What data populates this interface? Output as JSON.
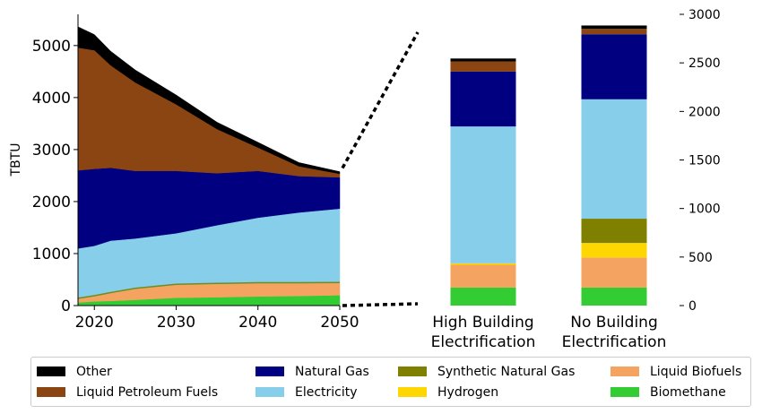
{
  "chart_data": [
    {
      "type": "area",
      "stacked": true,
      "ylabel": "TBTU",
      "ylim": [
        0,
        5600
      ],
      "yticks": [
        0,
        1000,
        2000,
        3000,
        4000,
        5000
      ],
      "xlim": [
        2018,
        2050
      ],
      "xticks": [
        2020,
        2030,
        2040,
        2050
      ],
      "x": [
        2018,
        2020,
        2022,
        2025,
        2030,
        2035,
        2040,
        2045,
        2050
      ],
      "series": [
        {
          "name": "Biomethane",
          "color": "#33cc33",
          "values": [
            60,
            80,
            90,
            110,
            150,
            160,
            175,
            185,
            200
          ]
        },
        {
          "name": "Liquid Biofuels",
          "color": "#f4a460",
          "values": [
            80,
            110,
            160,
            220,
            260,
            265,
            265,
            255,
            245
          ]
        },
        {
          "name": "Electricity",
          "color": "#87ceeb",
          "values": [
            960,
            960,
            1000,
            960,
            980,
            1120,
            1250,
            1350,
            1420
          ]
        },
        {
          "name": "Natural Gas",
          "color": "#000080",
          "values": [
            1500,
            1480,
            1400,
            1300,
            1200,
            1000,
            900,
            700,
            600
          ]
        },
        {
          "name": "Liquid Petroleum Fuels",
          "color": "#8b4513",
          "values": [
            2360,
            2280,
            1970,
            1700,
            1280,
            850,
            450,
            190,
            70
          ]
        },
        {
          "name": "Other",
          "color": "#000000",
          "values": [
            400,
            300,
            270,
            240,
            180,
            130,
            100,
            70,
            40
          ]
        }
      ]
    },
    {
      "type": "bar",
      "stacked": true,
      "ylim": [
        0,
        3000
      ],
      "yticks": [
        0,
        500,
        1000,
        1500,
        2000,
        2500,
        3000
      ],
      "categories": [
        "High Building Electrification",
        "No Building Electrification"
      ],
      "category_lines": [
        [
          "High Building",
          "Electrification"
        ],
        [
          "No Building",
          "Electrification"
        ]
      ],
      "series": [
        {
          "name": "Biomethane",
          "color": "#33cc33",
          "values": [
            185,
            185
          ]
        },
        {
          "name": "Liquid Biofuels",
          "color": "#f4a460",
          "values": [
            235,
            310
          ]
        },
        {
          "name": "Hydrogen",
          "color": "#ffd700",
          "values": [
            15,
            150
          ]
        },
        {
          "name": "Synthetic Natural Gas",
          "color": "#808000",
          "values": [
            0,
            250
          ]
        },
        {
          "name": "Electricity",
          "color": "#87ceeb",
          "values": [
            1410,
            1230
          ]
        },
        {
          "name": "Natural Gas",
          "color": "#000080",
          "values": [
            565,
            670
          ]
        },
        {
          "name": "Liquid Petroleum Fuels",
          "color": "#8b4513",
          "values": [
            105,
            55
          ]
        },
        {
          "name": "Other",
          "color": "#000000",
          "values": [
            30,
            35
          ]
        }
      ]
    }
  ],
  "legend": {
    "items": [
      {
        "label": "Other",
        "color": "#000000"
      },
      {
        "label": "Liquid Petroleum Fuels",
        "color": "#8b4513"
      },
      {
        "label": "Natural Gas",
        "color": "#000080"
      },
      {
        "label": "Electricity",
        "color": "#87ceeb"
      },
      {
        "label": "Synthetic Natural Gas",
        "color": "#808000"
      },
      {
        "label": "Hydrogen",
        "color": "#ffd700"
      },
      {
        "label": "Liquid Biofuels",
        "color": "#f4a460"
      },
      {
        "label": "Biomethane",
        "color": "#33cc33"
      }
    ]
  }
}
